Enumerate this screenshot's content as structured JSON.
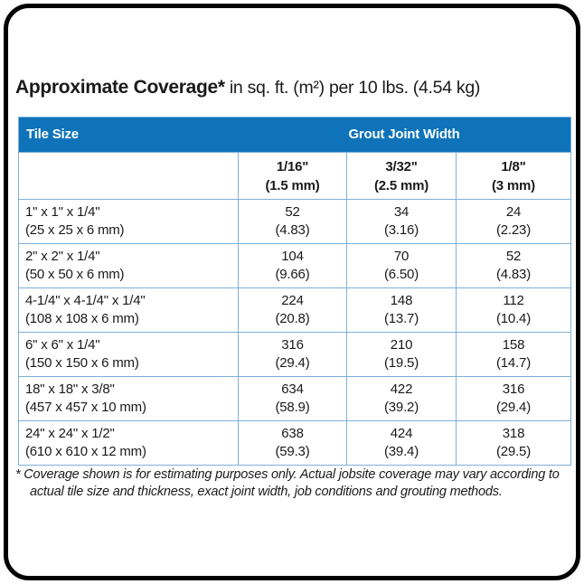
{
  "title": {
    "bold": "Approximate Coverage*",
    "rest": " in sq. ft. (m²) per 10 lbs. (4.54 kg)"
  },
  "table": {
    "header": {
      "tile_size": "Tile Size",
      "grout_joint_width": "Grout Joint Width"
    },
    "columns": [
      {
        "width": "1/16\"",
        "metric": "(1.5 mm)"
      },
      {
        "width": "3/32\"",
        "metric": "(2.5 mm)"
      },
      {
        "width": "1/8\"",
        "metric": "(3 mm)"
      }
    ],
    "rows": [
      {
        "size": "1\" x 1\" x 1/4\"",
        "size_metric": "(25 x 25 x 6 mm)",
        "values": [
          {
            "v": "52",
            "m": "(4.83)"
          },
          {
            "v": "34",
            "m": "(3.16)"
          },
          {
            "v": "24",
            "m": "(2.23)"
          }
        ]
      },
      {
        "size": "2\" x 2\" x 1/4\"",
        "size_metric": "(50 x 50 x 6 mm)",
        "values": [
          {
            "v": "104",
            "m": "(9.66)"
          },
          {
            "v": "70",
            "m": "(6.50)"
          },
          {
            "v": "52",
            "m": "(4.83)"
          }
        ]
      },
      {
        "size": "4-1/4\" x 4-1/4\" x 1/4\"",
        "size_metric": "(108 x 108 x 6 mm)",
        "values": [
          {
            "v": "224",
            "m": "(20.8)"
          },
          {
            "v": "148",
            "m": "(13.7)"
          },
          {
            "v": "112",
            "m": "(10.4)"
          }
        ]
      },
      {
        "size": "6\" x 6\" x 1/4\"",
        "size_metric": "(150 x 150 x 6 mm)",
        "values": [
          {
            "v": "316",
            "m": "(29.4)"
          },
          {
            "v": "210",
            "m": "(19.5)"
          },
          {
            "v": "158",
            "m": "(14.7)"
          }
        ]
      },
      {
        "size": "18\" x 18\" x 3/8\"",
        "size_metric": "(457 x 457 x 10 mm)",
        "values": [
          {
            "v": "634",
            "m": "(58.9)"
          },
          {
            "v": "422",
            "m": "(39.2)"
          },
          {
            "v": "316",
            "m": "(29.4)"
          }
        ]
      },
      {
        "size": "24\" x 24\" x 1/2\"",
        "size_metric": "(610 x 610 x 12 mm)",
        "values": [
          {
            "v": "638",
            "m": "(59.3)"
          },
          {
            "v": "424",
            "m": "(39.4)"
          },
          {
            "v": "318",
            "m": "(29.5)"
          }
        ]
      }
    ]
  },
  "footnote": "* Coverage shown is for estimating purposes only. Actual jobsite coverage may vary according to actual tile size and thickness, exact joint width, job conditions and grouting methods.",
  "colors": {
    "header_blue": "#0E73B9",
    "grid_blue": "#7FAFD9",
    "card_border": "#000000",
    "header_text": "#FFFFFF",
    "body_text": "#1A1A1A"
  }
}
